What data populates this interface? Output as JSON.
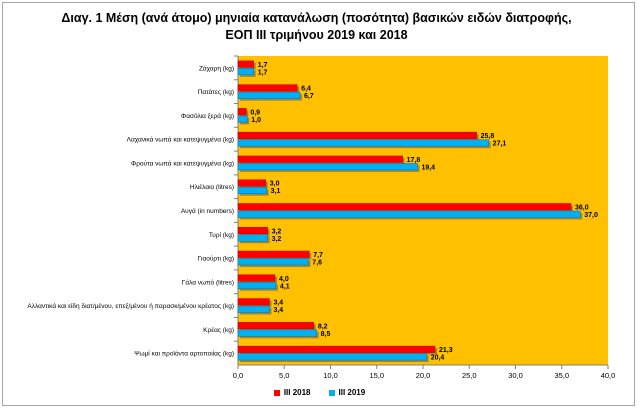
{
  "chart_data": {
    "type": "bar",
    "orientation": "horizontal",
    "title_line1": "Διαγ. 1  Μέση (ανά άτομο) μηνιαία κατανάλωση (ποσότητα) βασικών ειδών διατροφής,",
    "title_line2": "ΕΟΠ ΙΙΙ τριμήνου 2019 και 2018",
    "categories": [
      "Ζάχαρη (kg)",
      "Πατάτες (kg)",
      "Φασόλια ξερά (kg)",
      "Λαχανικά νωπά και κατεψυγμένα (kg)",
      "Φρούτα νωπά και κατεψυγμένα (kg)",
      "Ηλιέλαιο (litres)",
      "Αυγά (in numbers)",
      "Τυρί (kg)",
      "Γιαούρτι (kg)",
      "Γάλα νωπό (litres)",
      "Αλλαντικά και είδη διατ/μένου, επεξ/μένου ή παρασκ/μένου κρέατος (kg)",
      "Κρέας (kg)",
      "Ψωμί και προϊόντα αρτοποιίας (kg)"
    ],
    "series": [
      {
        "name": "ΙΙΙ 2018",
        "color": "#ff0000",
        "values": [
          1.7,
          6.4,
          0.9,
          25.8,
          17.8,
          3.0,
          36.0,
          3.2,
          7.7,
          4.0,
          3.4,
          8.2,
          21.3
        ],
        "labels": [
          "1,7",
          "6,4",
          "0,9",
          "25,8",
          "17,8",
          "3,0",
          "36,0",
          "3,2",
          "7,7",
          "4,0",
          "3,4",
          "8,2",
          "21,3"
        ]
      },
      {
        "name": "ΙΙΙ 2019",
        "color": "#00b0f0",
        "values": [
          1.7,
          6.7,
          1.0,
          27.1,
          19.4,
          3.1,
          37.0,
          3.2,
          7.6,
          4.1,
          3.4,
          8.5,
          20.4
        ],
        "labels": [
          "1,7",
          "6,7",
          "1,0",
          "27,1",
          "19,4",
          "3,1",
          "37,0",
          "3,2",
          "7,6",
          "4,1",
          "3,4",
          "8,5",
          "20,4"
        ]
      }
    ],
    "xlim": [
      0,
      40
    ],
    "xticks": [
      0,
      5,
      10,
      15,
      20,
      25,
      30,
      35,
      40
    ],
    "xtick_labels": [
      "0,0",
      "5,0",
      "10,0",
      "15,0",
      "20,0",
      "25,0",
      "30,0",
      "35,0",
      "40,0"
    ],
    "plot_background": "#ffc000",
    "legend_position": "bottom"
  }
}
